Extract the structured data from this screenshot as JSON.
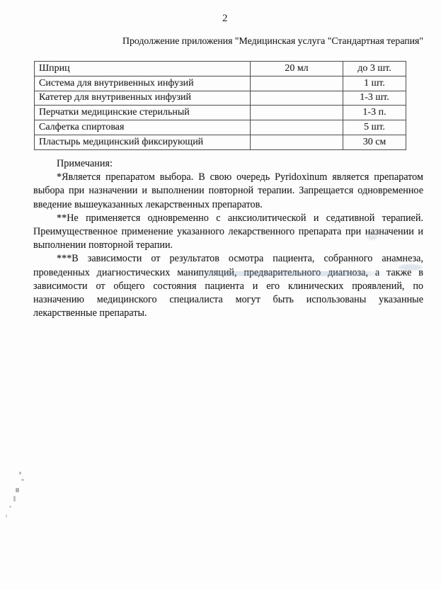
{
  "doc": {
    "page_number": "2",
    "header": "Продолжение приложения \"Медицинская услуга \"Стандартная терапия\"",
    "table": {
      "rows": [
        [
          "Шприц",
          "20 мл",
          "до 3 шт."
        ],
        [
          "Система для внутривенных инфузий",
          "",
          "1 шт."
        ],
        [
          "Катетер для внутривенных инфузий",
          "",
          "1-3 шт."
        ],
        [
          "Перчатки медицинские стерильный",
          "",
          "1-3 п."
        ],
        [
          "Салфетка спиртовая",
          "",
          "5 шт."
        ],
        [
          "Пластырь медицинский фиксирующий",
          "",
          "30 см"
        ]
      ]
    },
    "notes": {
      "title": "Примечания:",
      "items": [
        "*Является препаратом выбора. В свою очередь Pyridoxinum является препаратом выбора при назначении и выполнении повторной терапии. Запрещается одновременное введение вышеуказанных лекарственных препаратов.",
        "**Не применяется одновременно с анксиолитической и седативной терапией. Преимущественное применение указанного лекарственного препарата при назначении и выполнении повторной терапии.",
        "***В зависимости от результатов осмотра пациента, собранного анамнеза, проведенных диагностических манипуляций, предварительного диагноза, а также в зависимости от общего состояния пациента и его клинических проявлений, по назначению медицинского специалиста могут быть использованы указанные лекарственные препараты."
      ]
    },
    "colors": {
      "ink": "#222222",
      "table_border": "#4d4d4d",
      "paper": "#fdfdfd",
      "highlight_artifact": "#96aac3"
    }
  }
}
